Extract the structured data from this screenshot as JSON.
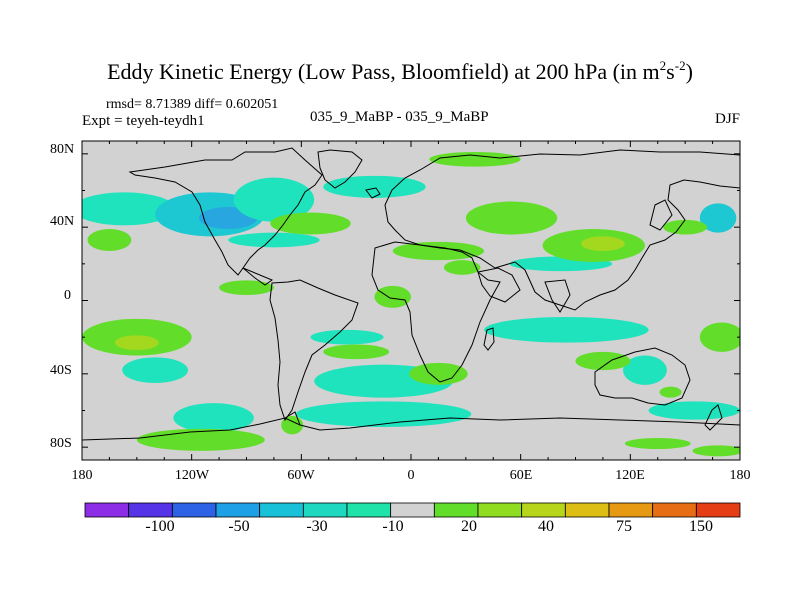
{
  "title": {
    "prefix": "Eddy Kinetic Energy (Low Pass, Bloomfield) at 200 hPa (in m",
    "sup1": "2",
    "mid": "s",
    "sup2": "-2",
    "suffix": ")"
  },
  "stats_line": "rmsd= 8.71389 diff= 0.602051",
  "experiment": "Expt = teyeh-teydh1",
  "center_label": "035_9_MaBP - 035_9_MaBP",
  "season": "DJF",
  "axes": {
    "lat_labels": [
      "80N",
      "40N",
      "0",
      "40S",
      "80S"
    ],
    "lon_labels": [
      "180",
      "120W",
      "60W",
      "0",
      "60E",
      "120E",
      "180"
    ]
  },
  "colorbar": {
    "labels": [
      "-100",
      "-50",
      "-30",
      "-10",
      "20",
      "40",
      "75",
      "150"
    ],
    "colors": [
      "#8d2ee6",
      "#5533e6",
      "#2e62e6",
      "#1ea0e6",
      "#19c1d8",
      "#1ed9c0",
      "#1fe3a8",
      "#d2d2d2",
      "#62de2a",
      "#8fdc21",
      "#b7d51b",
      "#dcbe14",
      "#e69a14",
      "#e66d14",
      "#e63e14"
    ]
  },
  "colors": {
    "land_background": "#d2d2d2",
    "neg_light": "#1fe3bd",
    "neg_mid": "#1ec8d2",
    "neg_strong": "#27a6df",
    "pos_light": "#62de2a",
    "pos_mid": "#a3d81f",
    "coast": "#000000"
  },
  "map_patches": [
    {
      "sign": "neg",
      "level": 1,
      "lon": -157,
      "lat": 50,
      "rx": 28,
      "ry": 9
    },
    {
      "sign": "neg",
      "level": 2,
      "lon": -110,
      "lat": 47,
      "rx": 30,
      "ry": 12
    },
    {
      "sign": "neg",
      "level": 3,
      "lon": -100,
      "lat": 45,
      "rx": 16,
      "ry": 6
    },
    {
      "sign": "neg",
      "level": 1,
      "lon": -75,
      "lat": 55,
      "rx": 22,
      "ry": 12
    },
    {
      "sign": "neg",
      "level": 1,
      "lon": -20,
      "lat": 62,
      "rx": 28,
      "ry": 6
    },
    {
      "sign": "neg",
      "level": 1,
      "lon": -75,
      "lat": 33,
      "rx": 25,
      "ry": 4
    },
    {
      "sign": "neg",
      "level": 2,
      "lon": 168,
      "lat": 45,
      "rx": 10,
      "ry": 8
    },
    {
      "sign": "neg",
      "level": 1,
      "lon": 82,
      "lat": 20,
      "rx": 28,
      "ry": 4
    },
    {
      "sign": "neg",
      "level": 1,
      "lon": -35,
      "lat": -20,
      "rx": 20,
      "ry": 4
    },
    {
      "sign": "neg",
      "level": 1,
      "lon": 85,
      "lat": -16,
      "rx": 45,
      "ry": 7
    },
    {
      "sign": "neg",
      "level": 1,
      "lon": -140,
      "lat": -38,
      "rx": 18,
      "ry": 7
    },
    {
      "sign": "neg",
      "level": 1,
      "lon": -15,
      "lat": -44,
      "rx": 38,
      "ry": 9
    },
    {
      "sign": "neg",
      "level": 1,
      "lon": 128,
      "lat": -38,
      "rx": 12,
      "ry": 8
    },
    {
      "sign": "neg",
      "level": 1,
      "lon": -108,
      "lat": -64,
      "rx": 22,
      "ry": 8
    },
    {
      "sign": "neg",
      "level": 1,
      "lon": -15,
      "lat": -62,
      "rx": 48,
      "ry": 7
    },
    {
      "sign": "neg",
      "level": 1,
      "lon": 155,
      "lat": -60,
      "rx": 25,
      "ry": 5
    },
    {
      "sign": "pos",
      "level": 1,
      "lon": 35,
      "lat": 77,
      "rx": 25,
      "ry": 4
    },
    {
      "sign": "pos",
      "level": 1,
      "lon": -165,
      "lat": 33,
      "rx": 12,
      "ry": 6
    },
    {
      "sign": "pos",
      "level": 1,
      "lon": -55,
      "lat": 42,
      "rx": 22,
      "ry": 6
    },
    {
      "sign": "pos",
      "level": 1,
      "lon": 15,
      "lat": 27,
      "rx": 25,
      "ry": 5
    },
    {
      "sign": "pos",
      "level": 1,
      "lon": 55,
      "lat": 45,
      "rx": 25,
      "ry": 9
    },
    {
      "sign": "pos",
      "level": 1,
      "lon": 100,
      "lat": 30,
      "rx": 28,
      "ry": 9
    },
    {
      "sign": "pos",
      "level": 2,
      "lon": 105,
      "lat": 31,
      "rx": 12,
      "ry": 4
    },
    {
      "sign": "pos",
      "level": 1,
      "lon": 150,
      "lat": 40,
      "rx": 12,
      "ry": 4
    },
    {
      "sign": "pos",
      "level": 1,
      "lon": -90,
      "lat": 7,
      "rx": 15,
      "ry": 4
    },
    {
      "sign": "pos",
      "level": 1,
      "lon": -10,
      "lat": 2,
      "rx": 10,
      "ry": 6
    },
    {
      "sign": "pos",
      "level": 1,
      "lon": 28,
      "lat": 18,
      "rx": 10,
      "ry": 4
    },
    {
      "sign": "pos",
      "level": 1,
      "lon": -150,
      "lat": -20,
      "rx": 30,
      "ry": 10
    },
    {
      "sign": "pos",
      "level": 2,
      "lon": -150,
      "lat": -23,
      "rx": 12,
      "ry": 4
    },
    {
      "sign": "pos",
      "level": 1,
      "lon": -30,
      "lat": -28,
      "rx": 18,
      "ry": 4
    },
    {
      "sign": "pos",
      "level": 1,
      "lon": 15,
      "lat": -40,
      "rx": 16,
      "ry": 6
    },
    {
      "sign": "pos",
      "level": 1,
      "lon": 170,
      "lat": -20,
      "rx": 12,
      "ry": 8
    },
    {
      "sign": "pos",
      "level": 1,
      "lon": 105,
      "lat": -33,
      "rx": 15,
      "ry": 5
    },
    {
      "sign": "pos",
      "level": 1,
      "lon": -115,
      "lat": -76,
      "rx": 35,
      "ry": 6
    },
    {
      "sign": "pos",
      "level": 1,
      "lon": -65,
      "lat": -68,
      "rx": 6,
      "ry": 5
    },
    {
      "sign": "pos",
      "level": 1,
      "lon": 135,
      "lat": -78,
      "rx": 18,
      "ry": 3
    },
    {
      "sign": "pos",
      "level": 1,
      "lon": 168,
      "lat": -82,
      "rx": 14,
      "ry": 3
    },
    {
      "sign": "pos",
      "level": 1,
      "lon": 142,
      "lat": -50,
      "rx": 6,
      "ry": 3
    }
  ]
}
